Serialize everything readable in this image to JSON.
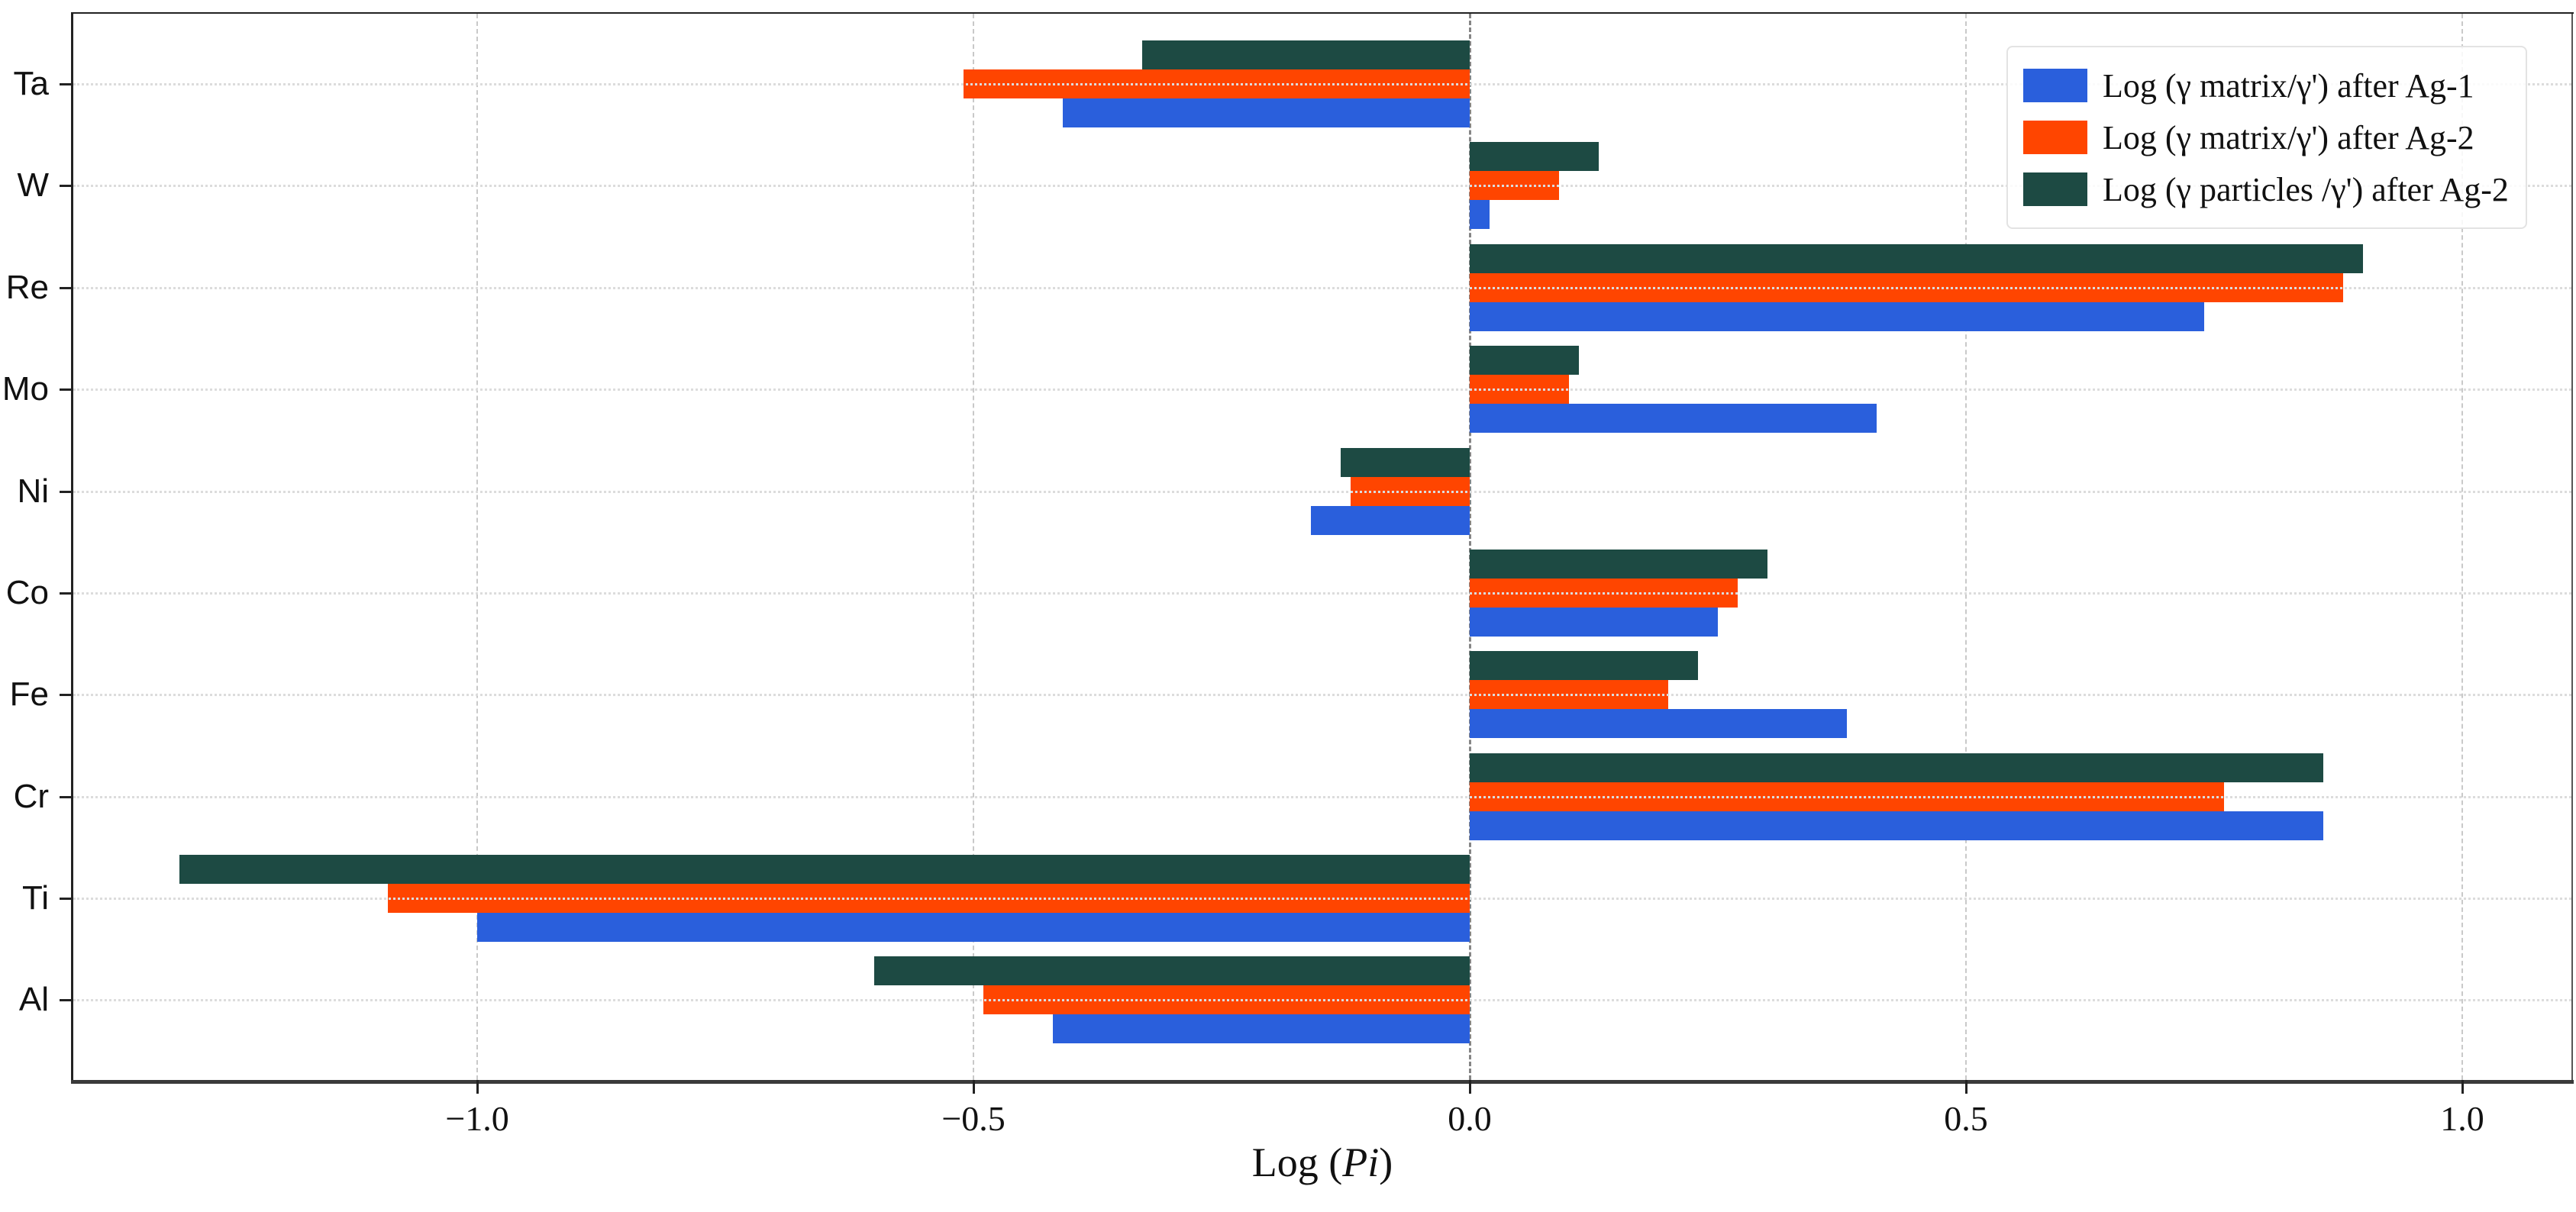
{
  "chart_data": {
    "type": "bar",
    "orientation": "horizontal",
    "title": "",
    "xlabel": "Log (Pi)",
    "xlabel_prefix": "Log (",
    "xlabel_italic": "Pi",
    "xlabel_suffix": ")",
    "categories": [
      "Ta",
      "W",
      "Re",
      "Mo",
      "Ni",
      "Co",
      "Fe",
      "Cr",
      "Ti",
      "Al"
    ],
    "series": [
      {
        "name": "Log (γ matrix/γ') after Ag-1",
        "color": "#2a5fdc",
        "values": [
          -0.41,
          0.02,
          0.74,
          0.41,
          -0.16,
          0.25,
          0.38,
          0.86,
          -1.0,
          -0.42
        ]
      },
      {
        "name": "Log (γ matrix/γ') after Ag-2",
        "color": "#ff4500",
        "values": [
          -0.51,
          0.09,
          0.88,
          0.1,
          -0.12,
          0.27,
          0.2,
          0.76,
          -1.09,
          -0.49
        ]
      },
      {
        "name": "Log (γ particles /γ') after Ag-2",
        "color": "#1d4a43",
        "values": [
          -0.33,
          0.13,
          0.9,
          0.11,
          -0.13,
          0.3,
          0.23,
          0.86,
          -1.3,
          -0.6
        ]
      }
    ],
    "x_ticks": [
      -1.0,
      -0.5,
      0.0,
      0.5,
      1.0
    ],
    "x_tick_labels": [
      "−1.0",
      "−0.5",
      "0.0",
      "0.5",
      "1.0"
    ],
    "xlim": [
      -1.407,
      1.11
    ],
    "grid": true,
    "zero_line": true,
    "legend_position": "top-right",
    "colors": {
      "background": "#ffffff",
      "axis": "#222222",
      "grid_light": "#c9c9c9",
      "zero_line": "#858585",
      "text": "#111111"
    }
  }
}
